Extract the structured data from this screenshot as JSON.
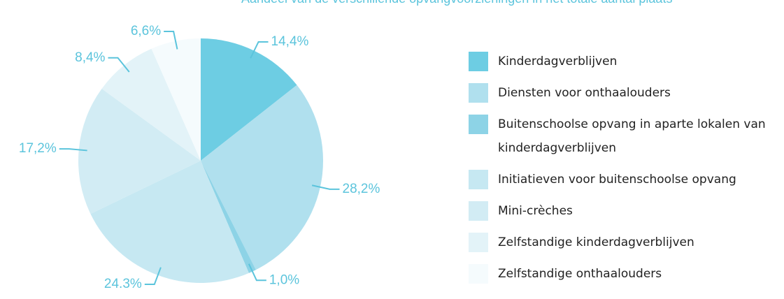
{
  "chart_data": {
    "type": "pie",
    "title": "Aandeel van de verschillende opvangvoorzieningen in het totale aantal plaats",
    "categories": [
      "Kinderdagverblijven",
      "Diensten voor onthaalouders",
      "Buitenschoolse opvang in aparte lokalen van kinderdagverblijven",
      "Initiatieven voor buitenschoolse opvang",
      "Mini-crèches",
      "Zelfstandige kinderdagverblijven",
      "Zelfstandige onthaalouders"
    ],
    "values": [
      14.4,
      28.2,
      1.0,
      24.3,
      17.2,
      8.4,
      6.6
    ],
    "value_labels": [
      "14,4%",
      "28,2%",
      "1,0%",
      "24.3%",
      "17,2%",
      "8,4%",
      "6,6%"
    ],
    "colors": [
      "#6dcde3",
      "#b0e0ee",
      "#8dd3e6",
      "#c6e8f2",
      "#d2ecf4",
      "#e3f3f8",
      "#f5fbfd"
    ],
    "legend": "right"
  }
}
